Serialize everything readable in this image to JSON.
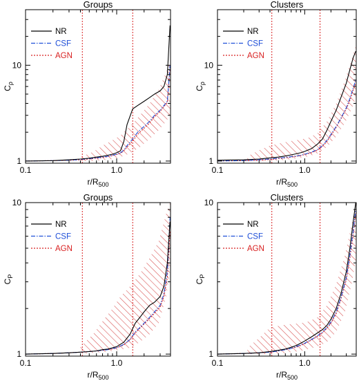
{
  "figure": {
    "colors": {
      "NR": "#000000",
      "CSF": "#1f4fd8",
      "AGN": "#d81e1e",
      "hatch": "#d23a3a"
    }
  },
  "chart_data": [
    {
      "type": "line",
      "title": "Groups",
      "xlabel": "r/R500",
      "ylabel": "Cρ",
      "xscale": "log",
      "yscale": "log",
      "xlim": [
        0.1,
        3.9
      ],
      "ylim": [
        0.95,
        38
      ],
      "xticks": [
        0.1,
        1.0
      ],
      "xtick_labels": [
        "0.1",
        "1.0"
      ],
      "yticks": [
        1,
        10
      ],
      "ytick_labels": [
        "1",
        "10"
      ],
      "vlines": [
        0.42,
        1.5
      ],
      "legend": {
        "placement": "top-left",
        "entries": [
          "NR",
          "CSF",
          "AGN"
        ]
      },
      "series": [
        {
          "name": "NR",
          "style": "solid",
          "x": [
            0.1,
            0.2,
            0.3,
            0.4,
            0.5,
            0.6,
            0.7,
            0.8,
            0.9,
            1.0,
            1.1,
            1.2,
            1.3,
            1.5,
            1.7,
            2.0,
            2.3,
            2.6,
            3.0,
            3.3,
            3.6,
            3.85
          ],
          "y": [
            1.0,
            1.01,
            1.03,
            1.05,
            1.07,
            1.1,
            1.12,
            1.15,
            1.18,
            1.22,
            1.28,
            1.6,
            2.4,
            3.5,
            3.8,
            4.2,
            4.6,
            5.0,
            5.4,
            6.0,
            8.0,
            26.0
          ]
        },
        {
          "name": "CSF",
          "style": "dash-dot",
          "x": [
            0.1,
            0.2,
            0.3,
            0.4,
            0.5,
            0.6,
            0.7,
            0.8,
            0.9,
            1.0,
            1.1,
            1.2,
            1.3,
            1.5,
            1.7,
            2.0,
            2.3,
            2.6,
            3.0,
            3.3,
            3.6,
            3.85
          ],
          "y": [
            1.0,
            1.01,
            1.02,
            1.04,
            1.06,
            1.08,
            1.1,
            1.12,
            1.15,
            1.18,
            1.22,
            1.3,
            1.45,
            1.7,
            2.0,
            2.3,
            2.6,
            3.0,
            3.4,
            3.8,
            4.2,
            10.0
          ]
        },
        {
          "name": "AGN",
          "style": "dotted",
          "x": [
            0.1,
            0.2,
            0.3,
            0.4,
            0.5,
            0.6,
            0.7,
            0.8,
            0.9,
            1.0,
            1.1,
            1.2,
            1.3,
            1.5,
            1.7,
            2.0,
            2.3,
            2.6,
            3.0,
            3.3,
            3.6,
            3.85
          ],
          "y": [
            1.0,
            1.01,
            1.02,
            1.03,
            1.05,
            1.07,
            1.09,
            1.11,
            1.14,
            1.17,
            1.2,
            1.28,
            1.4,
            1.62,
            1.9,
            2.2,
            2.5,
            2.9,
            3.3,
            3.7,
            4.1,
            9.5
          ]
        }
      ],
      "band": {
        "x": [
          0.4,
          0.55,
          0.7,
          0.9,
          1.1,
          1.4,
          1.8,
          2.3,
          2.9,
          3.5,
          3.85
        ],
        "lower": [
          1.0,
          1.0,
          1.02,
          1.05,
          1.1,
          1.2,
          1.4,
          1.7,
          2.1,
          2.6,
          3.0
        ],
        "upper": [
          1.1,
          1.25,
          1.45,
          1.65,
          1.85,
          2.3,
          3.0,
          4.0,
          5.6,
          8.5,
          11.0
        ]
      }
    },
    {
      "type": "line",
      "title": "Clusters",
      "xlabel": "r/R500",
      "ylabel": "Cρ",
      "xscale": "log",
      "yscale": "log",
      "xlim": [
        0.1,
        3.9
      ],
      "ylim": [
        0.95,
        38
      ],
      "xticks": [
        0.1,
        1.0
      ],
      "xtick_labels": [
        "0.1",
        "1.0"
      ],
      "yticks": [
        1,
        10
      ],
      "ytick_labels": [
        "1",
        "10"
      ],
      "vlines": [
        0.42,
        1.5
      ],
      "legend": {
        "placement": "top-left",
        "entries": [
          "NR",
          "CSF",
          "AGN"
        ]
      },
      "series": [
        {
          "name": "NR",
          "style": "solid",
          "x": [
            0.1,
            0.2,
            0.3,
            0.4,
            0.5,
            0.6,
            0.7,
            0.8,
            0.9,
            1.0,
            1.2,
            1.4,
            1.6,
            1.8,
            2.0,
            2.3,
            2.6,
            3.0,
            3.3,
            3.6,
            3.85
          ],
          "y": [
            1.02,
            1.03,
            1.05,
            1.08,
            1.1,
            1.13,
            1.16,
            1.19,
            1.22,
            1.26,
            1.35,
            1.5,
            1.7,
            2.1,
            2.6,
            3.4,
            4.6,
            6.5,
            9.0,
            12.0,
            14.0
          ]
        },
        {
          "name": "CSF",
          "style": "dash-dot",
          "x": [
            0.1,
            0.2,
            0.3,
            0.4,
            0.5,
            0.6,
            0.7,
            0.8,
            0.9,
            1.0,
            1.2,
            1.4,
            1.6,
            1.8,
            2.0,
            2.3,
            2.6,
            3.0,
            3.3,
            3.6,
            3.85
          ],
          "y": [
            1.0,
            1.01,
            1.03,
            1.05,
            1.07,
            1.09,
            1.11,
            1.13,
            1.15,
            1.18,
            1.24,
            1.32,
            1.45,
            1.65,
            1.9,
            2.3,
            2.8,
            3.6,
            4.5,
            5.8,
            7.0
          ]
        },
        {
          "name": "AGN",
          "style": "dotted",
          "x": [
            0.1,
            0.2,
            0.3,
            0.4,
            0.5,
            0.6,
            0.7,
            0.8,
            0.9,
            1.0,
            1.2,
            1.4,
            1.6,
            1.8,
            2.0,
            2.3,
            2.6,
            3.0,
            3.3,
            3.6,
            3.85
          ],
          "y": [
            1.0,
            1.01,
            1.02,
            1.04,
            1.06,
            1.08,
            1.1,
            1.12,
            1.14,
            1.17,
            1.22,
            1.3,
            1.42,
            1.6,
            1.85,
            2.25,
            2.75,
            3.5,
            4.3,
            5.5,
            6.5
          ]
        }
      ],
      "band": {
        "x": [
          0.22,
          0.3,
          0.4,
          0.55,
          0.7,
          0.9,
          1.1,
          1.4,
          1.8,
          2.3,
          2.9,
          3.5,
          3.85
        ],
        "lower": [
          1.0,
          1.0,
          1.0,
          1.02,
          1.05,
          1.08,
          1.12,
          1.2,
          1.4,
          1.8,
          2.5,
          3.6,
          4.5
        ],
        "upper": [
          1.12,
          1.3,
          1.45,
          1.55,
          1.62,
          1.68,
          1.75,
          1.95,
          2.6,
          4.0,
          7.0,
          12.0,
          16.0
        ]
      }
    },
    {
      "type": "line",
      "title": "Groups",
      "xlabel": "r/R500",
      "ylabel": "CP",
      "xscale": "log",
      "yscale": "log",
      "xlim": [
        0.1,
        3.9
      ],
      "ylim": [
        0.97,
        10
      ],
      "xticks": [
        0.1,
        1.0
      ],
      "xtick_labels": [
        "0.1",
        "1.0"
      ],
      "yticks": [
        1,
        10
      ],
      "ytick_labels": [
        "1",
        "10"
      ],
      "vlines": [
        0.42,
        1.5
      ],
      "legend": {
        "placement": "top-left",
        "entries": [
          "NR",
          "CSF",
          "AGN"
        ]
      },
      "series": [
        {
          "name": "NR",
          "style": "solid",
          "x": [
            0.1,
            0.2,
            0.3,
            0.4,
            0.5,
            0.6,
            0.7,
            0.8,
            0.9,
            1.0,
            1.2,
            1.4,
            1.6,
            1.8,
            2.0,
            2.3,
            2.6,
            3.0,
            3.3,
            3.6,
            3.85
          ],
          "y": [
            1.0,
            1.01,
            1.02,
            1.03,
            1.04,
            1.05,
            1.07,
            1.08,
            1.1,
            1.12,
            1.2,
            1.35,
            1.6,
            1.75,
            1.9,
            2.1,
            2.2,
            2.4,
            2.8,
            4.0,
            7.5
          ]
        },
        {
          "name": "CSF",
          "style": "dash-dot",
          "x": [
            0.1,
            0.2,
            0.3,
            0.4,
            0.5,
            0.6,
            0.7,
            0.8,
            0.9,
            1.0,
            1.2,
            1.4,
            1.6,
            1.8,
            2.0,
            2.3,
            2.6,
            3.0,
            3.3,
            3.6,
            3.85
          ],
          "y": [
            1.0,
            1.01,
            1.02,
            1.03,
            1.04,
            1.05,
            1.06,
            1.07,
            1.09,
            1.1,
            1.16,
            1.25,
            1.4,
            1.5,
            1.6,
            1.75,
            1.9,
            2.1,
            2.5,
            3.5,
            8.0
          ]
        },
        {
          "name": "AGN",
          "style": "dotted",
          "x": [
            0.1,
            0.2,
            0.3,
            0.4,
            0.5,
            0.6,
            0.7,
            0.8,
            0.9,
            1.0,
            1.2,
            1.4,
            1.6,
            1.8,
            2.0,
            2.3,
            2.6,
            3.0,
            3.3,
            3.6,
            3.85
          ],
          "y": [
            1.0,
            1.01,
            1.02,
            1.03,
            1.04,
            1.05,
            1.06,
            1.07,
            1.08,
            1.1,
            1.15,
            1.24,
            1.38,
            1.48,
            1.58,
            1.72,
            1.86,
            2.05,
            2.4,
            3.2,
            6.5
          ]
        }
      ],
      "band": {
        "x": [
          0.4,
          0.55,
          0.7,
          0.9,
          1.1,
          1.4,
          1.8,
          2.3,
          2.9,
          3.5,
          3.85
        ],
        "lower": [
          1.0,
          1.02,
          1.03,
          1.05,
          1.07,
          1.1,
          1.2,
          1.35,
          1.6,
          2.4,
          3.5
        ],
        "upper": [
          1.12,
          1.35,
          1.65,
          2.0,
          2.4,
          2.8,
          3.4,
          4.3,
          5.6,
          8.5,
          10.0
        ]
      }
    },
    {
      "type": "line",
      "title": "Clusters",
      "xlabel": "r/R500",
      "ylabel": "CP",
      "xscale": "log",
      "yscale": "log",
      "xlim": [
        0.1,
        3.9
      ],
      "ylim": [
        0.97,
        10
      ],
      "xticks": [
        0.1,
        1.0
      ],
      "xtick_labels": [
        "0.1",
        "1.0"
      ],
      "yticks": [
        1,
        10
      ],
      "ytick_labels": [
        "1",
        "10"
      ],
      "vlines": [
        0.42,
        1.5
      ],
      "legend": {
        "placement": "top-left",
        "entries": [
          "NR",
          "CSF",
          "AGN"
        ]
      },
      "series": [
        {
          "name": "NR",
          "style": "solid",
          "x": [
            0.1,
            0.2,
            0.3,
            0.4,
            0.5,
            0.6,
            0.7,
            0.8,
            0.9,
            1.0,
            1.2,
            1.4,
            1.6,
            1.8,
            2.0,
            2.3,
            2.6,
            3.0,
            3.3,
            3.6,
            3.85
          ],
          "y": [
            1.0,
            1.01,
            1.02,
            1.04,
            1.06,
            1.08,
            1.11,
            1.14,
            1.18,
            1.22,
            1.3,
            1.38,
            1.45,
            1.55,
            1.7,
            2.0,
            2.5,
            3.5,
            5.0,
            7.5,
            10.0
          ]
        },
        {
          "name": "CSF",
          "style": "dash-dot",
          "x": [
            0.1,
            0.2,
            0.3,
            0.4,
            0.5,
            0.6,
            0.7,
            0.8,
            0.9,
            1.0,
            1.2,
            1.4,
            1.6,
            1.8,
            2.0,
            2.3,
            2.6,
            3.0,
            3.3,
            3.6,
            3.85
          ],
          "y": [
            1.0,
            1.01,
            1.02,
            1.03,
            1.05,
            1.07,
            1.09,
            1.12,
            1.15,
            1.18,
            1.25,
            1.32,
            1.4,
            1.5,
            1.63,
            1.9,
            2.35,
            3.2,
            4.5,
            6.5,
            9.0
          ]
        },
        {
          "name": "AGN",
          "style": "dotted",
          "x": [
            0.1,
            0.2,
            0.3,
            0.4,
            0.5,
            0.6,
            0.7,
            0.8,
            0.9,
            1.0,
            1.2,
            1.4,
            1.6,
            1.8,
            2.0,
            2.3,
            2.6,
            3.0,
            3.3,
            3.6,
            3.85
          ],
          "y": [
            1.0,
            1.01,
            1.02,
            1.03,
            1.05,
            1.07,
            1.09,
            1.11,
            1.14,
            1.17,
            1.24,
            1.31,
            1.38,
            1.48,
            1.6,
            1.85,
            2.3,
            3.1,
            4.3,
            6.2,
            8.5
          ]
        }
      ],
      "band": {
        "x": [
          0.22,
          0.3,
          0.4,
          0.55,
          0.7,
          0.9,
          1.1,
          1.4,
          1.8,
          2.3,
          2.9,
          3.5,
          3.85
        ],
        "lower": [
          1.0,
          1.0,
          1.0,
          1.01,
          1.03,
          1.05,
          1.08,
          1.12,
          1.2,
          1.4,
          1.9,
          3.0,
          4.2
        ],
        "upper": [
          1.1,
          1.28,
          1.5,
          1.55,
          1.58,
          1.6,
          1.64,
          1.75,
          2.1,
          2.9,
          4.5,
          7.5,
          10.0
        ]
      }
    }
  ]
}
